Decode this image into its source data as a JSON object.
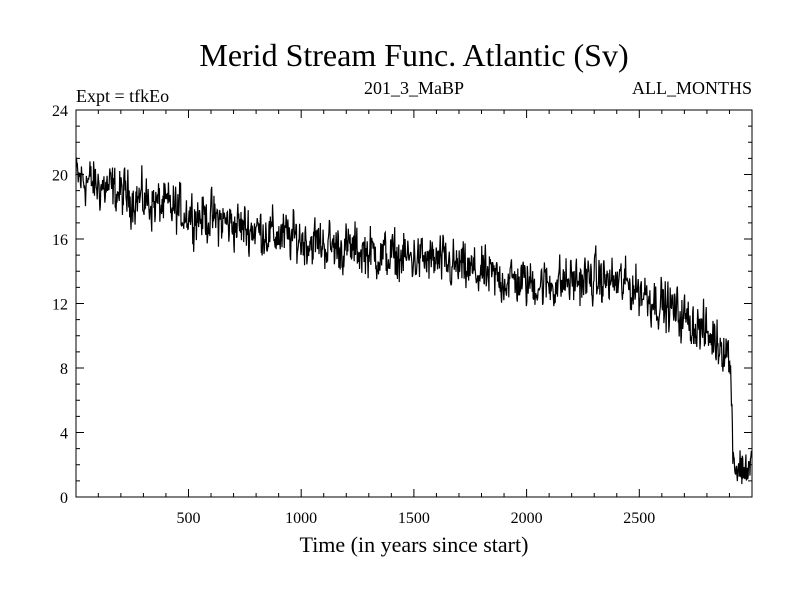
{
  "chart_data": {
    "type": "line",
    "title": "Merid Stream Func. Atlantic (Sv)",
    "subtitle_left": "Expt = tfkEo",
    "subtitle_center": "201_3_MaBP",
    "subtitle_right": "ALL_MONTHS",
    "xlabel": "Time (in years since start)",
    "ylabel": "",
    "xlim": [
      1,
      3000
    ],
    "ylim": [
      0,
      24
    ],
    "xticks": [
      500,
      1000,
      1500,
      2000,
      2500
    ],
    "xtick_labels": [
      "500",
      "1000",
      "1500",
      "2000",
      "2500"
    ],
    "yticks": [
      0,
      4,
      8,
      12,
      16,
      20,
      24
    ],
    "ytick_labels": [
      "0",
      "4",
      "8",
      "12",
      "16",
      "20",
      "24"
    ],
    "grid": false,
    "line_color": "#000000",
    "series": [
      {
        "x": [
          1,
          50,
          100,
          150,
          200,
          250,
          300,
          350,
          400,
          450,
          500,
          550,
          600,
          650,
          700,
          750,
          800,
          850,
          900,
          950,
          1000,
          1050,
          1100,
          1150,
          1200,
          1250,
          1300,
          1350,
          1400,
          1450,
          1500,
          1550,
          1600,
          1650,
          1700,
          1750,
          1800,
          1850,
          1900,
          1950,
          2000,
          2050,
          2100,
          2150,
          2200,
          2250,
          2300,
          2350,
          2400,
          2450,
          2500,
          2550,
          2600,
          2650,
          2700,
          2750,
          2800,
          2850,
          2880,
          2900,
          2920,
          2940,
          2960,
          2980,
          3000
        ],
        "values": [
          19.8,
          19.6,
          19.3,
          19.1,
          18.8,
          18.6,
          18.4,
          18.2,
          18.0,
          17.8,
          17.6,
          17.4,
          17.3,
          17.1,
          16.9,
          16.7,
          16.6,
          16.4,
          16.2,
          16.1,
          16.0,
          15.8,
          15.7,
          15.5,
          15.4,
          15.3,
          15.2,
          15.0,
          14.9,
          14.8,
          14.8,
          14.7,
          14.6,
          14.4,
          14.2,
          14.0,
          13.8,
          13.6,
          13.5,
          13.4,
          13.3,
          13.2,
          13.2,
          13.3,
          13.4,
          13.5,
          13.5,
          13.4,
          13.3,
          13.1,
          12.8,
          12.4,
          12.0,
          11.6,
          11.1,
          10.6,
          10.1,
          9.6,
          9.3,
          8.8,
          2.3,
          1.8,
          1.7,
          1.9,
          2.2
        ],
        "noise_amplitude": 1.1
      }
    ]
  }
}
